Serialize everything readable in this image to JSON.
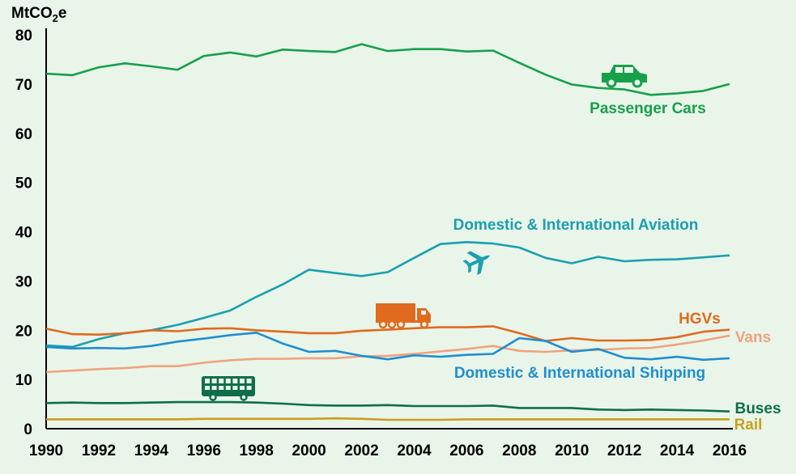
{
  "chart_data": {
    "type": "line",
    "ylabel": "MtCO2e",
    "ylabel_parts": {
      "main": "MtCO",
      "sub": "2",
      "tail": "e"
    },
    "ylim": [
      0,
      80
    ],
    "yticks": [
      0,
      10,
      20,
      30,
      40,
      50,
      60,
      70,
      80
    ],
    "xlim": [
      1990,
      2016
    ],
    "xticks": [
      1990,
      1992,
      1994,
      1996,
      1998,
      2000,
      2002,
      2004,
      2006,
      2008,
      2010,
      2012,
      2014,
      2016
    ],
    "x": [
      1990,
      1991,
      1992,
      1993,
      1994,
      1995,
      1996,
      1997,
      1998,
      1999,
      2000,
      2001,
      2002,
      2003,
      2004,
      2005,
      2006,
      2007,
      2008,
      2009,
      2010,
      2011,
      2012,
      2013,
      2014,
      2015,
      2016
    ],
    "grid": false,
    "series": [
      {
        "name": "Passenger Cars",
        "color": "#17a04a",
        "icon": "car-icon",
        "values": [
          72.1,
          71.8,
          73.4,
          74.2,
          73.6,
          72.9,
          75.7,
          76.4,
          75.6,
          77.0,
          76.7,
          76.5,
          78.1,
          76.7,
          77.1,
          77.1,
          76.6,
          76.8,
          74.3,
          71.9,
          69.9,
          69.2,
          68.9,
          67.8,
          68.1,
          68.6,
          70.0
        ]
      },
      {
        "name": "Domestic & International Aviation",
        "color": "#1a9fb0",
        "icon": "airplane-icon",
        "values": [
          16.9,
          16.6,
          18.2,
          19.4,
          20.0,
          21.1,
          22.5,
          24.0,
          26.8,
          29.3,
          32.3,
          31.6,
          31.0,
          31.8,
          34.7,
          37.5,
          37.9,
          37.6,
          36.8,
          34.7,
          33.6,
          34.9,
          34.0,
          34.3,
          34.4,
          34.8,
          35.2
        ]
      },
      {
        "name": "HGVs",
        "color": "#e06a1e",
        "icon": "truck-icon",
        "values": [
          20.3,
          19.2,
          19.1,
          19.4,
          20.0,
          19.8,
          20.3,
          20.4,
          20.0,
          19.7,
          19.4,
          19.4,
          19.9,
          20.1,
          20.4,
          20.6,
          20.6,
          20.8,
          19.4,
          17.8,
          18.4,
          17.9,
          17.9,
          18.0,
          18.6,
          19.7,
          20.1
        ]
      },
      {
        "name": "Vans",
        "color": "#f0a27e",
        "icon": "",
        "values": [
          11.5,
          11.8,
          12.1,
          12.3,
          12.7,
          12.7,
          13.4,
          13.9,
          14.2,
          14.2,
          14.3,
          14.3,
          14.7,
          14.8,
          15.2,
          15.7,
          16.2,
          16.8,
          15.8,
          15.6,
          15.9,
          16.0,
          16.3,
          16.4,
          17.1,
          17.9,
          18.9
        ]
      },
      {
        "name": "Domestic & International Shipping",
        "color": "#1e8fd0",
        "icon": "",
        "values": [
          16.6,
          16.3,
          16.4,
          16.3,
          16.8,
          17.7,
          18.3,
          19.0,
          19.5,
          17.3,
          15.6,
          15.8,
          14.8,
          14.1,
          14.9,
          14.6,
          15.0,
          15.2,
          18.4,
          17.8,
          15.6,
          16.2,
          14.4,
          14.1,
          14.6,
          14.0,
          14.3
        ]
      },
      {
        "name": "Buses",
        "color": "#0f6e4a",
        "icon": "bus-icon",
        "values": [
          5.2,
          5.3,
          5.2,
          5.2,
          5.3,
          5.4,
          5.4,
          5.4,
          5.3,
          5.1,
          4.8,
          4.7,
          4.7,
          4.8,
          4.6,
          4.6,
          4.6,
          4.7,
          4.2,
          4.2,
          4.2,
          3.9,
          3.8,
          3.9,
          3.8,
          3.7,
          3.5
        ]
      },
      {
        "name": "Rail",
        "color": "#c7a020",
        "icon": "",
        "values": [
          1.9,
          1.9,
          1.9,
          1.9,
          1.9,
          1.9,
          2.0,
          2.0,
          2.0,
          2.0,
          2.0,
          2.1,
          2.0,
          1.8,
          1.8,
          1.8,
          1.9,
          1.9,
          1.9,
          1.9,
          1.9,
          1.9,
          1.9,
          1.9,
          1.9,
          1.9,
          1.9
        ]
      }
    ]
  }
}
